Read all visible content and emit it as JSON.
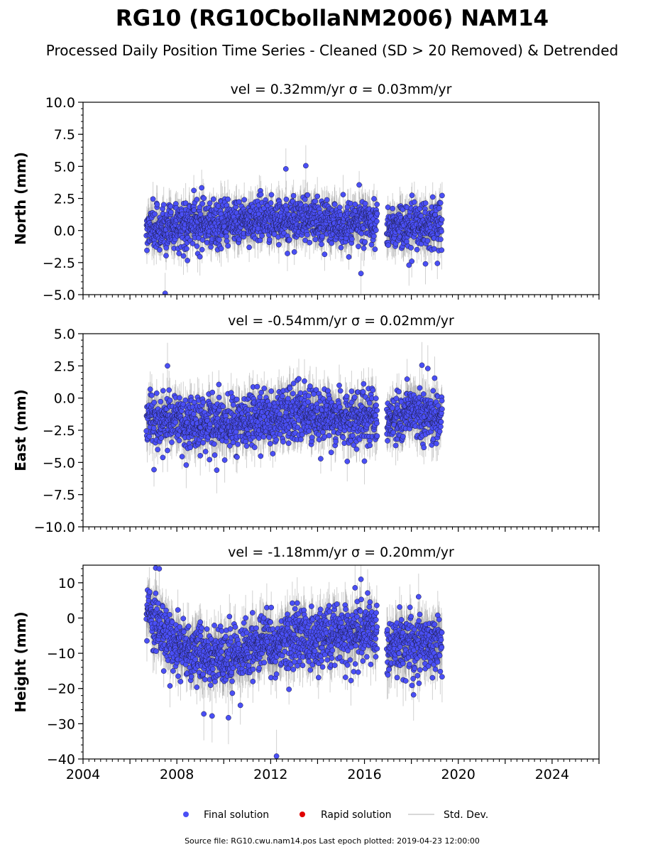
{
  "title": "RG10 (RG10CbollaNM2006) NAM14",
  "subtitle": "Processed Daily Position Time Series - Cleaned (SD > 20 Removed) & Detrended",
  "source": "Source file: RG10.cwu.nam14.pos  Last epoch plotted: 2019-04-23 12:00:00",
  "legend": [
    {
      "label": "Final solution",
      "color": "#4a4ff5",
      "kind": "marker"
    },
    {
      "label": "Rapid solution",
      "color": "#e00000",
      "kind": "marker"
    },
    {
      "label": "Std. Dev.",
      "color": "#cccccc",
      "kind": "line"
    }
  ],
  "chart_data": [
    {
      "type": "scatter",
      "title": "vel = 0.32mm/yr   σ = 0.03mm/yr",
      "ylabel": "North (mm)",
      "xlim": [
        2004,
        2026
      ],
      "ylim": [
        -5,
        10
      ],
      "yticks": [
        "−5.0",
        "−2.5",
        "0.0",
        "2.5",
        "5.0",
        "7.5",
        "10.0"
      ],
      "ytick_values": [
        -5,
        -2.5,
        0,
        2.5,
        5,
        7.5,
        10
      ],
      "y_minor_step": 0.5,
      "show_xtick_labels": false,
      "gap": [
        2016.55,
        2016.95
      ],
      "x_range": [
        2006.7,
        2019.31
      ],
      "baseline": [
        [
          2006.7,
          0.2
        ],
        [
          2008.5,
          0.5
        ],
        [
          2010,
          0.6
        ],
        [
          2011.5,
          0.8
        ],
        [
          2013.5,
          0.9
        ],
        [
          2015.5,
          0.6
        ],
        [
          2016.5,
          0.7
        ],
        [
          2017,
          0.5
        ],
        [
          2018,
          0.3
        ],
        [
          2019.3,
          0.5
        ]
      ],
      "noise_sd": 0.9,
      "err_range": [
        0.8,
        1.6
      ],
      "outliers": [
        [
          2013.5,
          5.05
        ],
        [
          2007.5,
          -4.9
        ],
        [
          2015.85,
          -3.35
        ],
        [
          2012.65,
          4.8
        ],
        [
          2017.9,
          -2.7
        ],
        [
          2018.6,
          -2.6
        ]
      ]
    },
    {
      "type": "scatter",
      "title": "vel = -0.54mm/yr   σ = 0.02mm/yr",
      "ylabel": "East (mm)",
      "xlim": [
        2004,
        2026
      ],
      "ylim": [
        -10,
        5
      ],
      "yticks": [
        "−10.0",
        "−7.5",
        "−5.0",
        "−2.5",
        "0.0",
        "2.5",
        "5.0"
      ],
      "ytick_values": [
        -10,
        -7.5,
        -5,
        -2.5,
        0,
        2.5,
        5
      ],
      "y_minor_step": 0.5,
      "show_xtick_labels": false,
      "gap": [
        2016.55,
        2016.95
      ],
      "x_range": [
        2006.7,
        2019.31
      ],
      "baseline": [
        [
          2006.7,
          -1.6
        ],
        [
          2008,
          -1.8
        ],
        [
          2009.5,
          -2.0
        ],
        [
          2011,
          -1.8
        ],
        [
          2013,
          -1.2
        ],
        [
          2014.5,
          -1.4
        ],
        [
          2016.5,
          -1.6
        ],
        [
          2017,
          -1.6
        ],
        [
          2018.5,
          -1.2
        ],
        [
          2019.3,
          -1.4
        ]
      ],
      "noise_sd": 1.0,
      "err_range": [
        0.8,
        1.8
      ],
      "outliers": [
        [
          2007.6,
          2.5
        ],
        [
          2018.45,
          2.55
        ],
        [
          2018.7,
          2.3
        ],
        [
          2009.7,
          -5.6
        ],
        [
          2008.4,
          -5.2
        ],
        [
          2016.0,
          -4.9
        ]
      ]
    },
    {
      "type": "scatter",
      "title": "vel = -1.18mm/yr   σ = 0.20mm/yr",
      "ylabel": "Height (mm)",
      "xlim": [
        2004,
        2026
      ],
      "ylim": [
        -40,
        15
      ],
      "yticks": [
        "−40",
        "−30",
        "−20",
        "−10",
        "0",
        "10"
      ],
      "ytick_values": [
        -40,
        -30,
        -20,
        -10,
        0,
        10
      ],
      "y_minor_step": 2,
      "show_xtick_labels": true,
      "xticks": [
        "2004",
        "2008",
        "2012",
        "2016",
        "2020",
        "2024"
      ],
      "xtick_values": [
        2004,
        2008,
        2012,
        2016,
        2020,
        2024
      ],
      "x_minor_step": 0.25,
      "gap": [
        2016.55,
        2016.95
      ],
      "x_range": [
        2006.7,
        2019.31
      ],
      "baseline": [
        [
          2006.7,
          2
        ],
        [
          2007.3,
          -3
        ],
        [
          2008,
          -8
        ],
        [
          2009,
          -10
        ],
        [
          2010,
          -11
        ],
        [
          2011,
          -9
        ],
        [
          2012,
          -8
        ],
        [
          2013,
          -6
        ],
        [
          2014,
          -5
        ],
        [
          2015,
          -4
        ],
        [
          2016.5,
          -4
        ],
        [
          2017,
          -8
        ],
        [
          2018,
          -7
        ],
        [
          2019.3,
          -7
        ]
      ],
      "noise_sd": 4.2,
      "err_range": [
        3.5,
        7.5
      ],
      "outliers": [
        [
          2012.25,
          -39.2
        ],
        [
          2010.2,
          -28.3
        ],
        [
          2009.5,
          -27.8
        ],
        [
          2009.15,
          -27.2
        ],
        [
          2007.1,
          14.2
        ],
        [
          2007.25,
          14.0
        ],
        [
          2015.85,
          11.0
        ]
      ]
    }
  ]
}
